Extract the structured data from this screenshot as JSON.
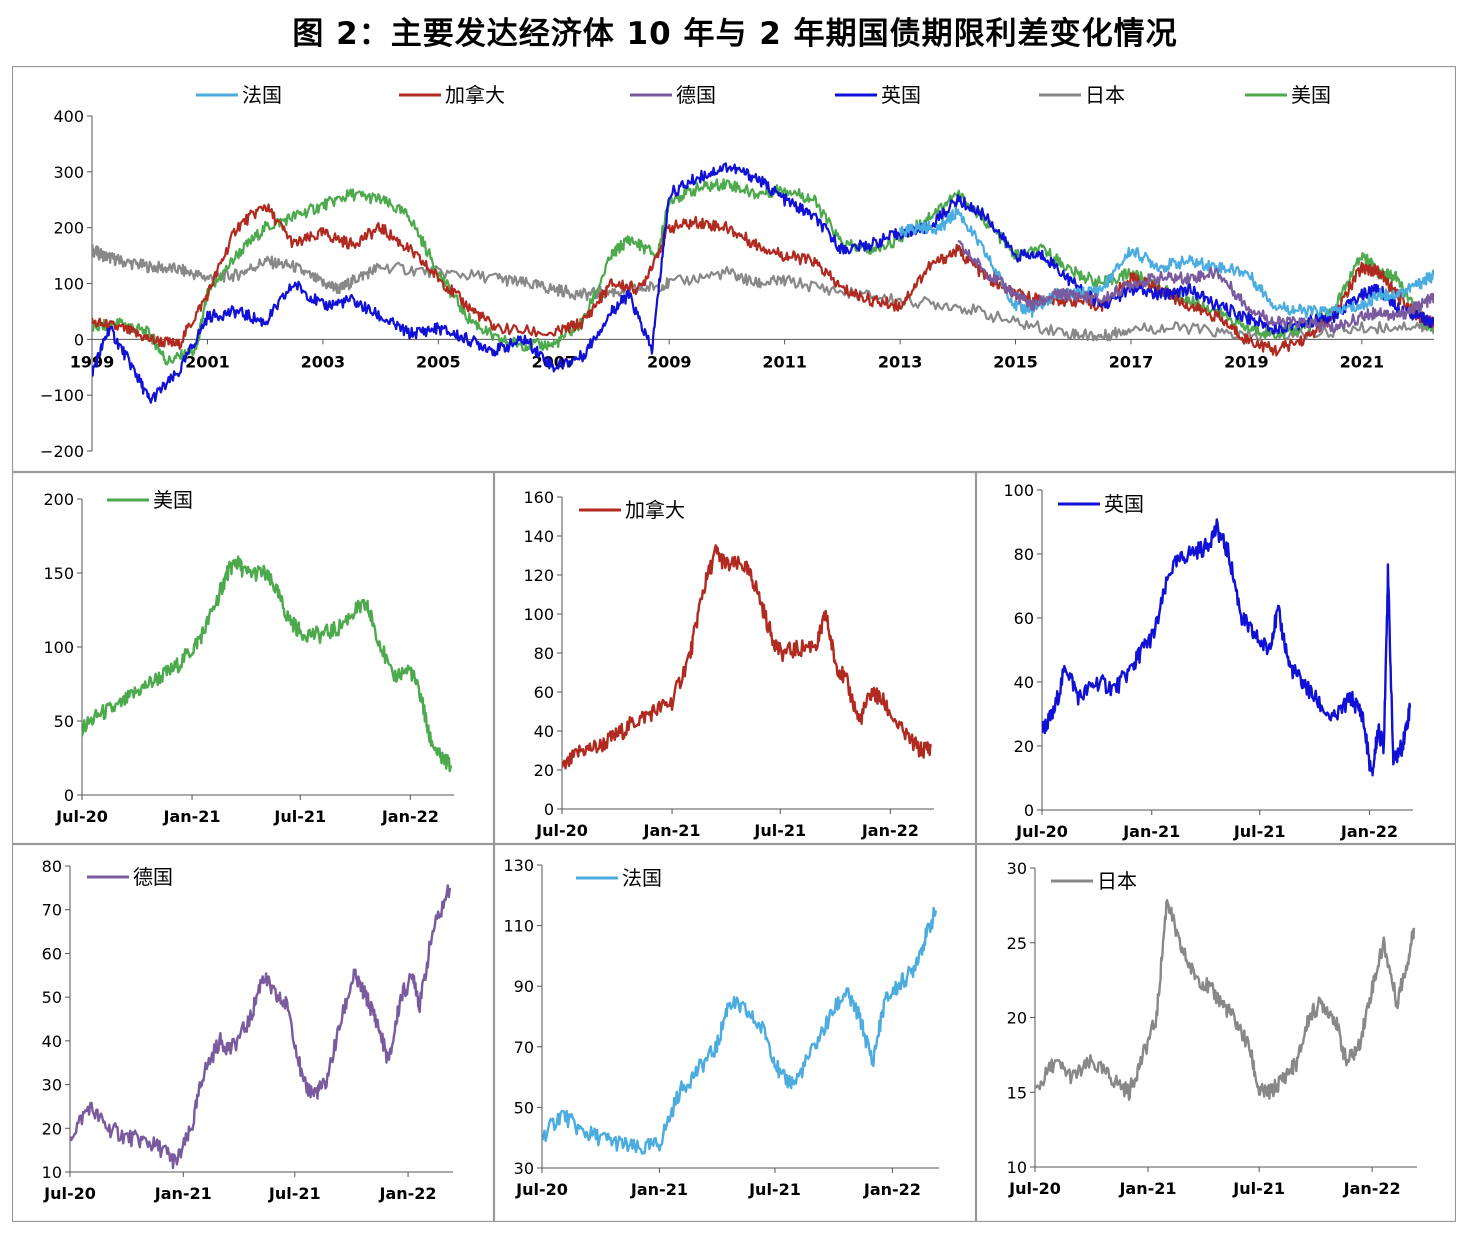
{
  "title": "图 2：主要发达经济体 10 年与 2 年期国债期限利差变化情况",
  "colors": {
    "法国": "#4bacdf",
    "加拿大": "#b02a20",
    "德国": "#7a5a9f",
    "英国": "#1010d6",
    "日本": "#888888",
    "美国": "#4caa4c"
  },
  "chart_data": [
    {
      "type": "line",
      "legend": [
        "法国",
        "加拿大",
        "德国",
        "英国",
        "日本",
        "美国"
      ],
      "legend_placement": "top",
      "x_ticks": [
        "1999",
        "2001",
        "2003",
        "2005",
        "2007",
        "2009",
        "2011",
        "2013",
        "2015",
        "2017",
        "2019",
        "2021"
      ],
      "xlim": [
        1999,
        2022.25
      ],
      "ylim": [
        -200,
        400
      ],
      "y_ticks": [
        -200,
        -100,
        0,
        100,
        200,
        300,
        400
      ],
      "series": [
        {
          "name": "日本",
          "x": [
            1999,
            1999.2,
            1999.5,
            2000,
            2000.5,
            2001,
            2001.5,
            2002,
            2002.5,
            2003,
            2003.3,
            2003.6,
            2004,
            2005,
            2006,
            2006.5,
            2007,
            2007.5,
            2008,
            2008.5,
            2009,
            2010,
            2010.5,
            2011,
            2012,
            2013,
            2014,
            2015,
            2016,
            2016.5,
            2017,
            2018,
            2019,
            2020,
            2021,
            2022,
            2022.25
          ],
          "y": [
            160,
            150,
            140,
            130,
            125,
            110,
            115,
            140,
            130,
            100,
            90,
            110,
            130,
            120,
            110,
            100,
            90,
            80,
            85,
            90,
            100,
            120,
            100,
            105,
            85,
            70,
            60,
            30,
            10,
            5,
            20,
            20,
            5,
            10,
            20,
            25,
            20
          ]
        },
        {
          "name": "美国",
          "x": [
            1999,
            1999.5,
            2000,
            2000.3,
            2000.8,
            2001,
            2001.5,
            2002,
            2002.5,
            2003,
            2003.5,
            2004,
            2004.5,
            2005,
            2005.5,
            2006,
            2006.5,
            2007,
            2007.5,
            2008,
            2008.3,
            2008.8,
            2009,
            2009.5,
            2010,
            2010.5,
            2011,
            2011.5,
            2012,
            2012.5,
            2013,
            2013.5,
            2014,
            2014.5,
            2015,
            2015.5,
            2016,
            2016.5,
            2017,
            2017.5,
            2018,
            2018.5,
            2019,
            2019.5,
            2020,
            2020.5,
            2021,
            2021.3,
            2021.6,
            2022,
            2022.25
          ],
          "y": [
            20,
            30,
            10,
            -40,
            -20,
            80,
            150,
            200,
            220,
            240,
            260,
            250,
            220,
            120,
            40,
            0,
            -10,
            -10,
            30,
            150,
            180,
            150,
            250,
            270,
            280,
            260,
            270,
            250,
            170,
            160,
            180,
            220,
            260,
            210,
            150,
            160,
            120,
            100,
            120,
            90,
            70,
            50,
            20,
            10,
            20,
            50,
            150,
            120,
            110,
            40,
            20
          ]
        },
        {
          "name": "加拿大",
          "x": [
            1999,
            1999.5,
            2000,
            2000.5,
            2001,
            2001.5,
            2002,
            2002.5,
            2003,
            2003.5,
            2004,
            2004.5,
            2005,
            2005.5,
            2006,
            2007,
            2007.5,
            2008,
            2008.5,
            2009,
            2009.5,
            2010,
            2010.5,
            2011,
            2011.5,
            2012,
            2012.5,
            2013,
            2013.5,
            2014,
            2014.5,
            2015,
            2015.5,
            2016,
            2016.5,
            2017,
            2017.5,
            2018,
            2018.5,
            2019,
            2019.5,
            2020,
            2020.5,
            2021,
            2021.3,
            2021.6,
            2022,
            2022.25
          ],
          "y": [
            30,
            20,
            0,
            -10,
            80,
            200,
            240,
            170,
            190,
            170,
            200,
            160,
            110,
            60,
            20,
            10,
            30,
            100,
            90,
            200,
            210,
            200,
            170,
            150,
            140,
            90,
            70,
            60,
            130,
            160,
            110,
            80,
            70,
            70,
            60,
            110,
            90,
            60,
            40,
            0,
            -20,
            0,
            40,
            130,
            120,
            80,
            40,
            30
          ]
        },
        {
          "name": "英国",
          "x": [
            1999,
            1999.3,
            1999.7,
            2000,
            2000.5,
            2001,
            2001.5,
            2002,
            2002.5,
            2003,
            2003.5,
            2004,
            2004.5,
            2005,
            2005.5,
            2006,
            2006.5,
            2007,
            2007.5,
            2008,
            2008.3,
            2008.7,
            2009,
            2009.5,
            2010,
            2010.5,
            2011,
            2011.5,
            2012,
            2012.5,
            2013,
            2013.5,
            2014,
            2014.5,
            2015,
            2015.5,
            2016,
            2016.5,
            2017,
            2017.5,
            2018,
            2018.5,
            2019,
            2019.5,
            2020,
            2020.5,
            2021,
            2021.3,
            2021.6,
            2022,
            2022.25
          ],
          "y": [
            -60,
            20,
            -50,
            -110,
            -60,
            40,
            50,
            30,
            100,
            60,
            70,
            40,
            10,
            20,
            0,
            -20,
            0,
            -50,
            -30,
            50,
            80,
            -20,
            260,
            290,
            310,
            290,
            250,
            220,
            160,
            170,
            190,
            200,
            250,
            220,
            150,
            150,
            100,
            60,
            90,
            80,
            90,
            60,
            40,
            20,
            30,
            40,
            80,
            90,
            60,
            40,
            30
          ]
        },
        {
          "name": "法国",
          "x": [
            2013,
            2013.3,
            2013.7,
            2014,
            2014.5,
            2015,
            2015.3,
            2015.7,
            2016,
            2016.5,
            2017,
            2017.5,
            2018,
            2018.5,
            2019,
            2019.5,
            2020,
            2020.5,
            2021,
            2021.3,
            2021.6,
            2022,
            2022.25
          ],
          "y": [
            190,
            200,
            200,
            230,
            150,
            60,
            50,
            80,
            80,
            90,
            160,
            130,
            140,
            130,
            120,
            60,
            50,
            50,
            60,
            80,
            80,
            100,
            115
          ]
        },
        {
          "name": "德国",
          "x": [
            2014,
            2014.5,
            2015,
            2015.3,
            2015.7,
            2016,
            2016.5,
            2017,
            2017.5,
            2018,
            2018.5,
            2019,
            2019.5,
            2020,
            2020.5,
            2021,
            2021.3,
            2021.6,
            2022,
            2022.25
          ],
          "y": [
            170,
            120,
            80,
            60,
            80,
            80,
            70,
            100,
            110,
            110,
            120,
            60,
            30,
            30,
            20,
            40,
            50,
            40,
            60,
            75
          ]
        }
      ]
    },
    {
      "type": "line",
      "legend": [
        "美国"
      ],
      "x_ticks": [
        "Jul-20",
        "Jan-21",
        "Jul-21",
        "Jan-22"
      ],
      "xlim": [
        "2020-07-01",
        "2022-03-15"
      ],
      "ylim": [
        0,
        200
      ],
      "y_ticks": [
        0,
        50,
        100,
        150,
        200
      ],
      "series": [
        {
          "name": "美国",
          "x": [
            "2020-07-01",
            "2020-08-01",
            "2020-09-01",
            "2020-10-01",
            "2020-11-01",
            "2020-12-01",
            "2021-01-01",
            "2021-01-20",
            "2021-02-15",
            "2021-03-01",
            "2021-03-15",
            "2021-04-01",
            "2021-05-01",
            "2021-05-20",
            "2021-06-10",
            "2021-07-01",
            "2021-08-01",
            "2021-09-01",
            "2021-10-01",
            "2021-10-20",
            "2021-11-01",
            "2021-12-01",
            "2022-01-01",
            "2022-01-20",
            "2022-02-01",
            "2022-02-20",
            "2022-03-10"
          ],
          "y": [
            45,
            55,
            60,
            70,
            78,
            85,
            98,
            110,
            135,
            150,
            158,
            150,
            150,
            140,
            120,
            110,
            108,
            112,
            125,
            128,
            115,
            80,
            85,
            65,
            40,
            25,
            20
          ]
        }
      ]
    },
    {
      "type": "line",
      "legend": [
        "加拿大"
      ],
      "x_ticks": [
        "Jul-20",
        "Jan-21",
        "Jul-21",
        "Jan-22"
      ],
      "xlim": [
        "2020-07-01",
        "2022-03-15"
      ],
      "ylim": [
        0,
        160
      ],
      "y_ticks": [
        0,
        20,
        40,
        60,
        80,
        100,
        120,
        140,
        160
      ],
      "series": [
        {
          "name": "加拿大",
          "x": [
            "2020-07-01",
            "2020-08-01",
            "2020-09-01",
            "2020-10-01",
            "2020-11-01",
            "2020-12-01",
            "2021-01-01",
            "2021-02-01",
            "2021-02-20",
            "2021-03-15",
            "2021-04-01",
            "2021-05-01",
            "2021-05-20",
            "2021-06-15",
            "2021-07-01",
            "2021-08-01",
            "2021-09-01",
            "2021-09-15",
            "2021-10-01",
            "2021-10-20",
            "2021-11-10",
            "2021-12-01",
            "2021-12-20",
            "2022-01-20",
            "2022-02-20",
            "2022-03-10"
          ],
          "y": [
            20,
            30,
            32,
            38,
            45,
            50,
            55,
            80,
            110,
            132,
            125,
            125,
            115,
            90,
            80,
            82,
            85,
            100,
            75,
            65,
            45,
            60,
            55,
            40,
            30,
            32
          ]
        }
      ]
    },
    {
      "type": "line",
      "legend": [
        "英国"
      ],
      "x_ticks": [
        "Jul-20",
        "Jan-21",
        "Jul-21",
        "Jan-22"
      ],
      "xlim": [
        "2020-07-01",
        "2022-03-15"
      ],
      "ylim": [
        0,
        100
      ],
      "y_ticks": [
        0,
        20,
        40,
        60,
        80,
        100
      ],
      "series": [
        {
          "name": "英国",
          "x": [
            "2020-07-01",
            "2020-07-20",
            "2020-08-10",
            "2020-09-01",
            "2020-10-01",
            "2020-11-01",
            "2020-12-01",
            "2020-12-15",
            "2021-01-05",
            "2021-02-01",
            "2021-03-01",
            "2021-04-01",
            "2021-04-20",
            "2021-05-10",
            "2021-06-01",
            "2021-06-20",
            "2021-07-15",
            "2021-08-01",
            "2021-08-20",
            "2021-09-10",
            "2021-10-01",
            "2021-11-01",
            "2021-12-01",
            "2021-12-20",
            "2022-01-05",
            "2022-01-15",
            "2022-01-25",
            "2022-02-01",
            "2022-02-10",
            "2022-02-25",
            "2022-03-10"
          ],
          "y": [
            25,
            30,
            45,
            35,
            40,
            38,
            45,
            50,
            55,
            75,
            80,
            82,
            88,
            80,
            60,
            55,
            50,
            62,
            45,
            40,
            35,
            28,
            35,
            30,
            10,
            25,
            20,
            74,
            15,
            20,
            32
          ]
        }
      ]
    },
    {
      "type": "line",
      "legend": [
        "德国"
      ],
      "x_ticks": [
        "Jul-20",
        "Jan-21",
        "Jul-21",
        "Jan-22"
      ],
      "xlim": [
        "2020-07-01",
        "2022-03-15"
      ],
      "ylim": [
        10,
        80
      ],
      "y_ticks": [
        10,
        20,
        30,
        40,
        50,
        60,
        70,
        80
      ],
      "series": [
        {
          "name": "德国",
          "x": [
            "2020-07-01",
            "2020-08-01",
            "2020-09-01",
            "2020-10-01",
            "2020-11-01",
            "2020-12-01",
            "2020-12-20",
            "2021-01-15",
            "2021-02-01",
            "2021-03-01",
            "2021-03-20",
            "2021-04-20",
            "2021-05-10",
            "2021-06-01",
            "2021-06-20",
            "2021-07-15",
            "2021-08-01",
            "2021-08-20",
            "2021-09-15",
            "2021-10-05",
            "2021-10-25",
            "2021-11-10",
            "2021-12-01",
            "2021-12-20",
            "2022-01-10",
            "2022-01-20",
            "2022-02-10",
            "2022-03-10"
          ],
          "y": [
            18,
            25,
            20,
            18,
            17,
            15,
            12,
            20,
            32,
            40,
            38,
            45,
            55,
            50,
            48,
            30,
            28,
            30,
            45,
            55,
            50,
            45,
            35,
            50,
            55,
            48,
            65,
            75
          ]
        }
      ]
    },
    {
      "type": "line",
      "legend": [
        "法国"
      ],
      "x_ticks": [
        "Jul-20",
        "Jan-21",
        "Jul-21",
        "Jan-22"
      ],
      "xlim": [
        "2020-07-01",
        "2022-03-15"
      ],
      "ylim": [
        30,
        130
      ],
      "y_ticks": [
        30,
        50,
        70,
        90,
        110,
        130
      ],
      "series": [
        {
          "name": "法国",
          "x": [
            "2020-07-01",
            "2020-08-01",
            "2020-09-01",
            "2020-10-01",
            "2020-11-01",
            "2020-12-01",
            "2021-01-01",
            "2021-02-01",
            "2021-03-01",
            "2021-04-01",
            "2021-04-20",
            "2021-05-15",
            "2021-06-15",
            "2021-07-10",
            "2021-08-01",
            "2021-09-01",
            "2021-10-01",
            "2021-10-20",
            "2021-11-10",
            "2021-12-01",
            "2021-12-20",
            "2022-01-10",
            "2022-02-01",
            "2022-02-20",
            "2022-03-10"
          ],
          "y": [
            40,
            48,
            42,
            40,
            38,
            36,
            38,
            55,
            62,
            70,
            85,
            82,
            75,
            60,
            58,
            70,
            82,
            88,
            80,
            65,
            85,
            90,
            95,
            105,
            115
          ]
        }
      ]
    },
    {
      "type": "line",
      "legend": [
        "日本"
      ],
      "x_ticks": [
        "Jul-20",
        "Jan-21",
        "Jul-21",
        "Jan-22"
      ],
      "xlim": [
        "2020-07-01",
        "2022-03-15"
      ],
      "ylim": [
        10,
        30
      ],
      "y_ticks": [
        10,
        15,
        20,
        25,
        30
      ],
      "series": [
        {
          "name": "日本",
          "x": [
            "2020-07-01",
            "2020-08-01",
            "2020-09-01",
            "2020-10-01",
            "2020-11-01",
            "2020-12-01",
            "2020-12-20",
            "2021-01-15",
            "2021-02-01",
            "2021-02-20",
            "2021-03-15",
            "2021-04-10",
            "2021-05-01",
            "2021-05-20",
            "2021-06-15",
            "2021-07-01",
            "2021-07-20",
            "2021-08-10",
            "2021-09-01",
            "2021-09-20",
            "2021-10-10",
            "2021-11-01",
            "2021-11-20",
            "2021-12-10",
            "2022-01-01",
            "2022-01-20",
            "2022-02-10",
            "2022-03-01",
            "2022-03-10"
          ],
          "y": [
            15,
            17,
            16,
            17,
            16,
            15,
            17,
            20,
            28,
            25,
            23,
            22,
            21,
            20,
            18,
            15,
            15,
            16,
            17,
            20,
            21,
            20,
            17,
            18,
            22,
            25,
            21,
            24,
            26
          ]
        }
      ]
    }
  ]
}
